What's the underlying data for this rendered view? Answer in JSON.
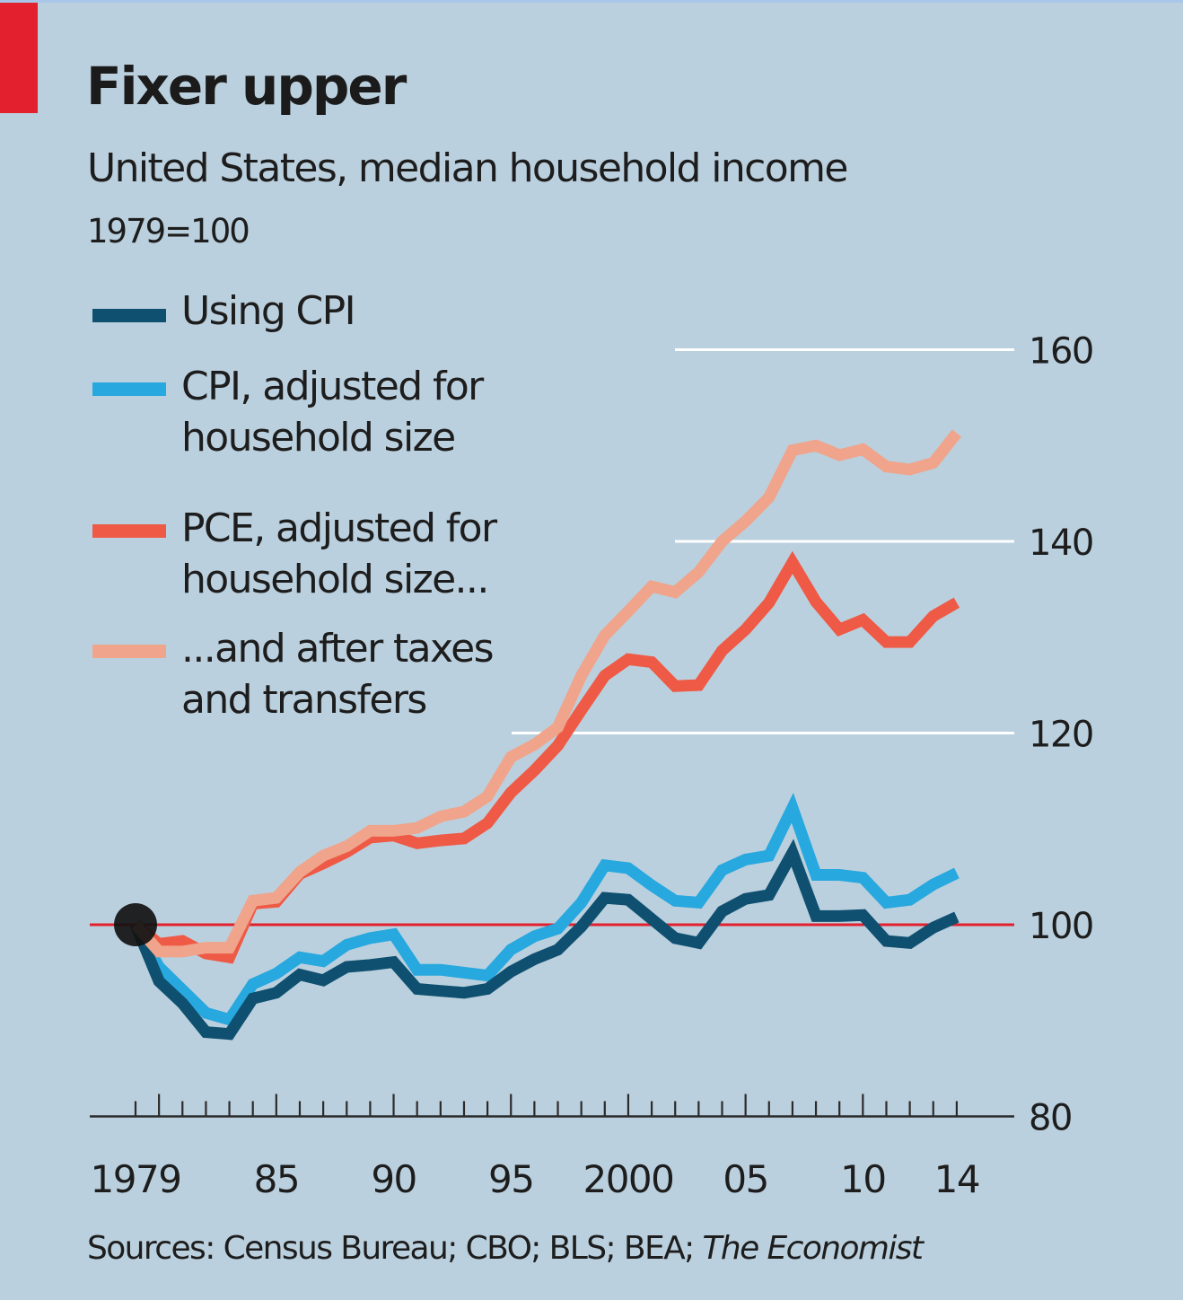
{
  "header": {
    "title": "Fixer upper",
    "subtitle": "United States, median household income",
    "unit_note": "1979=100"
  },
  "legend": [
    {
      "key": "cpi",
      "label": "Using CPI"
    },
    {
      "key": "cpi_adj",
      "label": "CPI, adjusted for\nhousehold size"
    },
    {
      "key": "pce_adj",
      "label": "PCE, adjusted for\nhousehold size..."
    },
    {
      "key": "pce_after_tax",
      "label": "...and after taxes\nand transfers"
    }
  ],
  "source": {
    "prefix": "Sources: Census Bureau; CBO; BLS; BEA; ",
    "italic": "The Economist"
  },
  "colors": {
    "background": "#bbd0de",
    "brand_red": "#e3202e",
    "baseline_red": "#e3202e",
    "gridline": "#ffffff",
    "axis": "#2b2b2b",
    "cpi": "#0f5070",
    "cpi_adj": "#27a8df",
    "pce_adj": "#ee5a45",
    "pce_after_tax": "#efa48b",
    "start_marker": "#111111"
  },
  "chart_data": {
    "type": "line",
    "title": "Fixer upper",
    "subtitle": "United States, median household income",
    "ylabel": "1979=100",
    "xlabel": "",
    "x": [
      1979,
      1980,
      1981,
      1982,
      1983,
      1984,
      1985,
      1986,
      1987,
      1988,
      1989,
      1990,
      1991,
      1992,
      1993,
      1994,
      1995,
      1996,
      1997,
      1998,
      1999,
      2000,
      2001,
      2002,
      2003,
      2004,
      2005,
      2006,
      2007,
      2008,
      2009,
      2010,
      2011,
      2012,
      2013,
      2014
    ],
    "xlim": [
      1979,
      2014
    ],
    "ylim": [
      80,
      160
    ],
    "y_ticks": [
      80,
      100,
      120,
      140,
      160
    ],
    "y_tick_labels": [
      "80",
      "100",
      "120",
      "140",
      "160"
    ],
    "x_tick_labels": [
      {
        "year": 1979,
        "label": "1979"
      },
      {
        "year": 1985,
        "label": "85"
      },
      {
        "year": 1990,
        "label": "90"
      },
      {
        "year": 1995,
        "label": "95"
      },
      {
        "year": 2000,
        "label": "2000"
      },
      {
        "year": 2005,
        "label": "05"
      },
      {
        "year": 2010,
        "label": "10"
      },
      {
        "year": 2014,
        "label": "14"
      }
    ],
    "major_tick_years": [
      1980,
      1985,
      1990,
      1995,
      2000,
      2005,
      2010
    ],
    "baseline": 100,
    "grid": true,
    "y_axis_side": "right",
    "legend_position": "top-left",
    "start_marker": {
      "year": 1979,
      "value": 100
    },
    "series": [
      {
        "key": "cpi",
        "name": "Using CPI",
        "values": [
          100,
          94.1,
          91.8,
          88.8,
          88.6,
          92.3,
          92.9,
          94.8,
          94.2,
          95.6,
          95.8,
          96.1,
          93.3,
          93.1,
          92.9,
          93.3,
          95.1,
          96.4,
          97.4,
          99.8,
          102.8,
          102.6,
          100.6,
          98.6,
          98.1,
          101.4,
          102.7,
          103.1,
          107.5,
          100.9,
          100.9,
          101.0,
          98.3,
          98.1,
          99.7,
          100.8
        ]
      },
      {
        "key": "cpi_adj",
        "name": "CPI, adjusted for household size",
        "values": [
          100,
          95.6,
          93.2,
          90.8,
          90.1,
          93.8,
          94.9,
          96.6,
          96.2,
          97.9,
          98.6,
          99.0,
          95.3,
          95.3,
          95.0,
          94.7,
          97.4,
          98.8,
          99.6,
          102.3,
          106.2,
          105.9,
          104.1,
          102.5,
          102.3,
          105.7,
          106.8,
          107.2,
          112.2,
          105.2,
          105.2,
          104.9,
          102.3,
          102.6,
          104.2,
          105.4
        ]
      },
      {
        "key": "pce_adj",
        "name": "PCE, adjusted for household size...",
        "values": [
          100,
          98.0,
          98.3,
          97.0,
          96.6,
          102.2,
          102.4,
          105.3,
          106.4,
          107.6,
          109.1,
          109.3,
          108.5,
          108.8,
          109.0,
          110.6,
          113.8,
          116.1,
          118.7,
          122.4,
          126.0,
          127.7,
          127.4,
          124.9,
          125.0,
          128.6,
          130.8,
          133.6,
          137.8,
          133.7,
          130.8,
          131.8,
          129.5,
          129.5,
          132.2,
          133.6
        ]
      },
      {
        "key": "pce_after_tax",
        "name": "...and after taxes and transfers",
        "values": [
          100,
          97.2,
          97.2,
          97.6,
          97.6,
          102.5,
          102.8,
          105.5,
          107.2,
          108.2,
          109.8,
          109.8,
          110.1,
          111.3,
          111.8,
          113.4,
          117.5,
          118.8,
          120.6,
          126.0,
          130.2,
          132.7,
          135.3,
          134.7,
          136.8,
          140.0,
          142.1,
          144.6,
          149.5,
          150.0,
          149.0,
          149.6,
          147.8,
          147.5,
          148.2,
          151.3
        ]
      }
    ]
  }
}
